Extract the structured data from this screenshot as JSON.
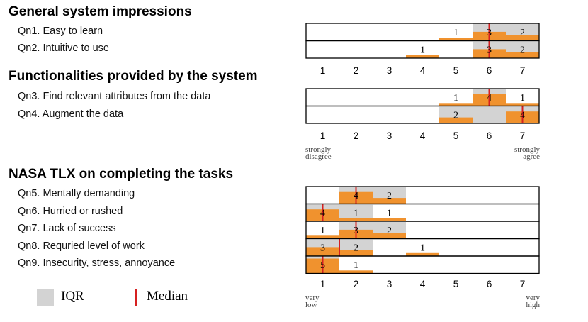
{
  "sections": [
    {
      "title": "General system impressions",
      "questions": [
        "Qn1. Easy to learn",
        "Qn2. Intuitive to use"
      ]
    },
    {
      "title": "Functionalities provided by the system",
      "questions": [
        "Qn3. Find relevant attributes from the data",
        "Qn4. Augment the data"
      ]
    },
    {
      "title": "NASA TLX on completing the tasks",
      "questions": [
        "Qn5. Mentally demanding",
        "Qn6. Hurried or rushed",
        "Qn7. Lack of success",
        "Qn8. Requried level of work",
        "Qn9. Insecurity, stress, annoyance"
      ]
    }
  ],
  "legend": {
    "iqr_label": "IQR",
    "median_label": "Median"
  },
  "colors": {
    "bar": "#f0922e",
    "iqr": "#d3d3d3",
    "median": "#d62020",
    "frame": "#000000"
  },
  "chart_data": [
    {
      "type": "bar",
      "title": "General system impressions",
      "x_ticks": [
        "1",
        "2",
        "3",
        "4",
        "5",
        "6",
        "7"
      ],
      "x_end_labels": {
        "low": "",
        "high": ""
      },
      "rows": [
        {
          "question": "Qn1. Easy to learn",
          "counts": [
            0,
            0,
            0,
            0,
            1,
            3,
            2
          ],
          "iqr": [
            5.5,
            7.5
          ],
          "median": 6
        },
        {
          "question": "Qn2. Intuitive to use",
          "counts": [
            0,
            0,
            0,
            1,
            0,
            3,
            2
          ],
          "iqr": [
            5.5,
            7.5
          ],
          "median": 6
        }
      ]
    },
    {
      "type": "bar",
      "title": "Functionalities provided by the system",
      "x_ticks": [
        "1",
        "2",
        "3",
        "4",
        "5",
        "6",
        "7"
      ],
      "x_end_labels": {
        "low": "strongly disagree",
        "high": "strongly agree"
      },
      "rows": [
        {
          "question": "Qn3. Find relevant attributes from the data",
          "counts": [
            0,
            0,
            0,
            0,
            1,
            4,
            1
          ],
          "iqr": [
            5.5,
            6.5
          ],
          "median": 6
        },
        {
          "question": "Qn4. Augment the data",
          "counts": [
            0,
            0,
            0,
            0,
            2,
            0,
            4
          ],
          "iqr": [
            4.5,
            7.5
          ],
          "median": 7
        }
      ]
    },
    {
      "type": "bar",
      "title": "NASA TLX on completing the tasks",
      "x_ticks": [
        "1",
        "2",
        "3",
        "4",
        "5",
        "6",
        "7"
      ],
      "x_end_labels": {
        "low": "very low",
        "high": "very high"
      },
      "rows": [
        {
          "question": "Qn5. Mentally demanding",
          "counts": [
            0,
            4,
            2,
            0,
            0,
            0,
            0
          ],
          "iqr": [
            1.5,
            3.5
          ],
          "median": 2
        },
        {
          "question": "Qn6. Hurried or rushed",
          "counts": [
            4,
            1,
            1,
            0,
            0,
            0,
            0
          ],
          "iqr": [
            0.5,
            2.5
          ],
          "median": 1
        },
        {
          "question": "Qn7. Lack of success",
          "counts": [
            1,
            3,
            2,
            0,
            0,
            0,
            0
          ],
          "iqr": [
            1.5,
            3.5
          ],
          "median": 2
        },
        {
          "question": "Qn8. Requried level of work",
          "counts": [
            3,
            2,
            0,
            1,
            0,
            0,
            0
          ],
          "iqr": [
            0.5,
            2.5
          ],
          "median": 1.5
        },
        {
          "question": "Qn9. Insecurity, stress, annoyance",
          "counts": [
            5,
            1,
            0,
            0,
            0,
            0,
            0
          ],
          "iqr": [
            0.5,
            1.5
          ],
          "median": 1
        }
      ]
    }
  ]
}
